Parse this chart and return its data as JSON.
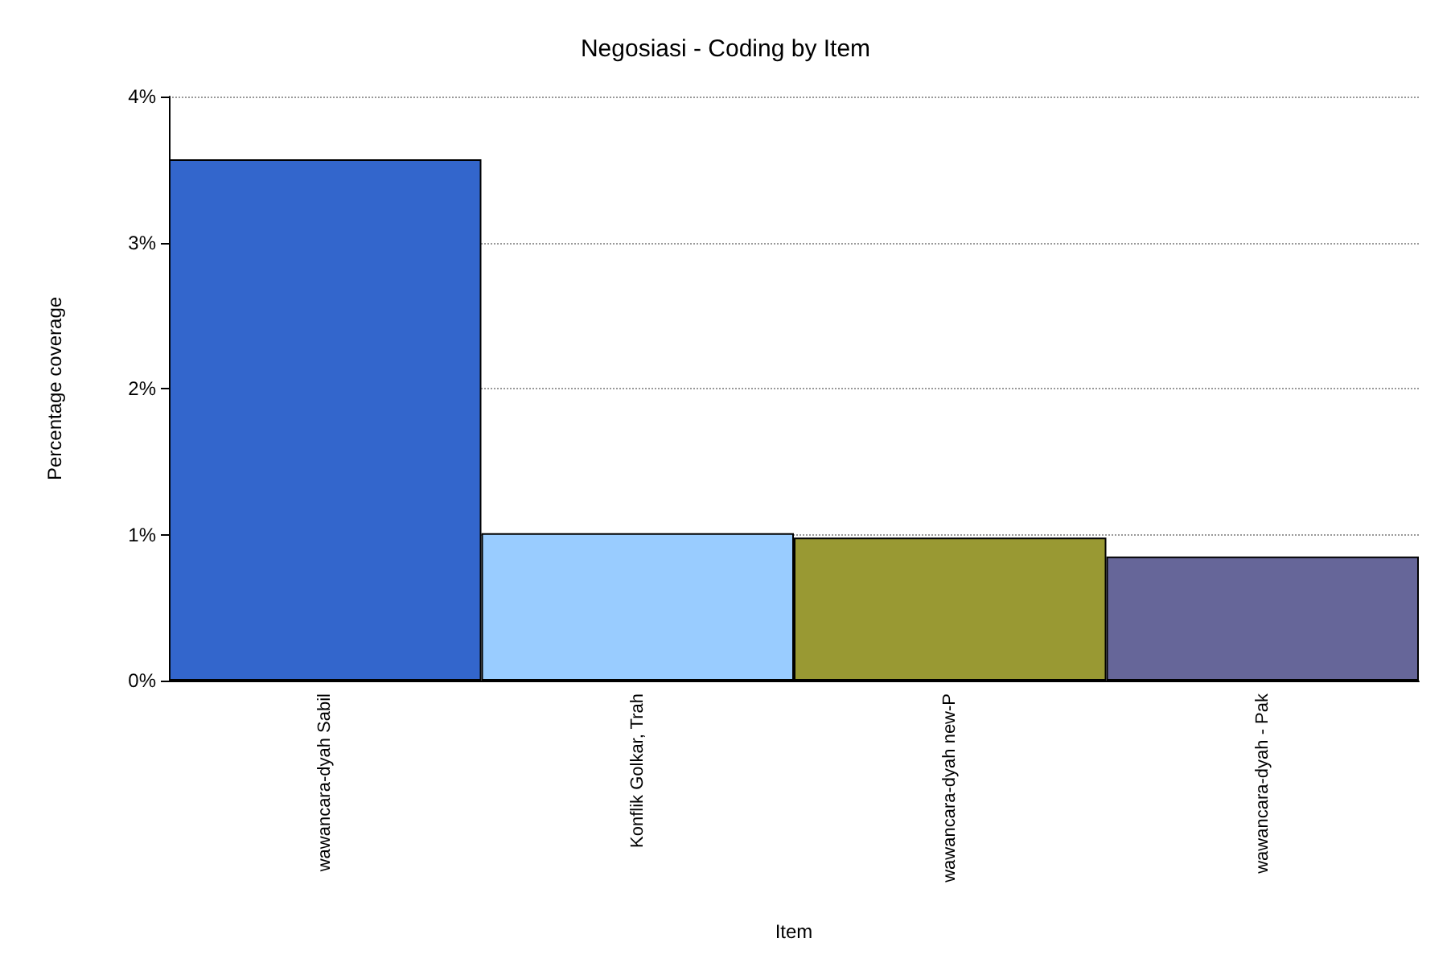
{
  "chart_data": {
    "type": "bar",
    "title": "Negosiasi - Coding by Item",
    "xlabel": "Item",
    "ylabel": "Percentage coverage",
    "categories": [
      "wawancara-dyah Sabil",
      "Konflik Golkar, Trah",
      "wawancara-dyah new-P",
      "wawancara-dyah - Pak"
    ],
    "values": [
      3.57,
      1.01,
      0.98,
      0.85
    ],
    "colors": [
      "#3366cc",
      "#99ccff",
      "#999933",
      "#666699"
    ],
    "ylim": [
      0,
      4
    ],
    "yticks": [
      {
        "value": 0,
        "label": "0%"
      },
      {
        "value": 1,
        "label": "1%"
      },
      {
        "value": 2,
        "label": "2%"
      },
      {
        "value": 3,
        "label": "3%"
      },
      {
        "value": 4,
        "label": "4%"
      }
    ],
    "grid": "y"
  }
}
